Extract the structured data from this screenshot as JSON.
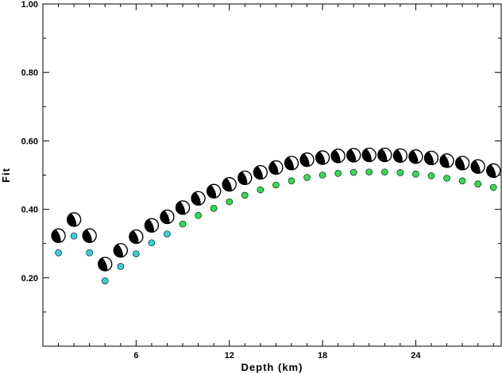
{
  "chart_data": {
    "type": "scatter",
    "title": "",
    "xlabel": "Depth (km)",
    "ylabel": "Fit",
    "xlim": [
      0,
      29.5
    ],
    "ylim": [
      0.0,
      1.0
    ],
    "x_ticks": [
      6,
      12,
      18,
      24
    ],
    "y_ticks": [
      0.2,
      0.4,
      0.6,
      0.8,
      1.0
    ],
    "x_tick_labels": [
      "6",
      "12",
      "18",
      "24"
    ],
    "y_tick_labels": [
      "0.20",
      "0.40",
      "0.60",
      "0.80",
      "1.00"
    ],
    "grid": false,
    "series": [
      {
        "marker": "mechanism-beachball",
        "x": [
          1,
          2,
          3,
          4,
          5,
          6,
          7,
          8,
          9,
          10,
          11,
          12,
          13,
          14,
          15,
          16,
          17,
          18,
          19,
          20,
          21,
          22,
          23,
          24,
          25,
          26,
          27,
          28,
          29
        ],
        "values": [
          0.323,
          0.37,
          0.323,
          0.24,
          0.28,
          0.32,
          0.353,
          0.378,
          0.405,
          0.432,
          0.453,
          0.473,
          0.492,
          0.508,
          0.522,
          0.535,
          0.545,
          0.551,
          0.556,
          0.558,
          0.559,
          0.559,
          0.557,
          0.554,
          0.55,
          0.542,
          0.535,
          0.525,
          0.513
        ]
      },
      {
        "marker": "dot",
        "x": [
          1,
          2,
          3,
          4,
          5,
          6,
          7,
          8,
          9,
          10,
          11,
          12,
          13,
          14,
          15,
          16,
          17,
          18,
          19,
          20,
          21,
          22,
          23,
          24,
          25,
          26,
          27,
          28,
          29
        ],
        "values": [
          0.273,
          0.322,
          0.273,
          0.191,
          0.233,
          0.27,
          0.302,
          0.328,
          0.357,
          0.382,
          0.403,
          0.422,
          0.441,
          0.457,
          0.471,
          0.483,
          0.493,
          0.5,
          0.505,
          0.508,
          0.509,
          0.509,
          0.507,
          0.503,
          0.498,
          0.491,
          0.483,
          0.474,
          0.464
        ],
        "colors": [
          "#38d0d8",
          "#38d0d8",
          "#38d0d8",
          "#38d0d8",
          "#38d0d8",
          "#38d0d8",
          "#38d0d8",
          "#38d0d8",
          "#30dc50",
          "#30dc50",
          "#30dc50",
          "#30dc50",
          "#30dc50",
          "#30dc50",
          "#30dc50",
          "#30dc50",
          "#30dc50",
          "#30dc50",
          "#30dc50",
          "#30dc50",
          "#30dc50",
          "#30dc50",
          "#30dc50",
          "#30dc50",
          "#30dc50",
          "#30dc50",
          "#30dc50",
          "#30dc50",
          "#30dc50"
        ]
      }
    ]
  }
}
